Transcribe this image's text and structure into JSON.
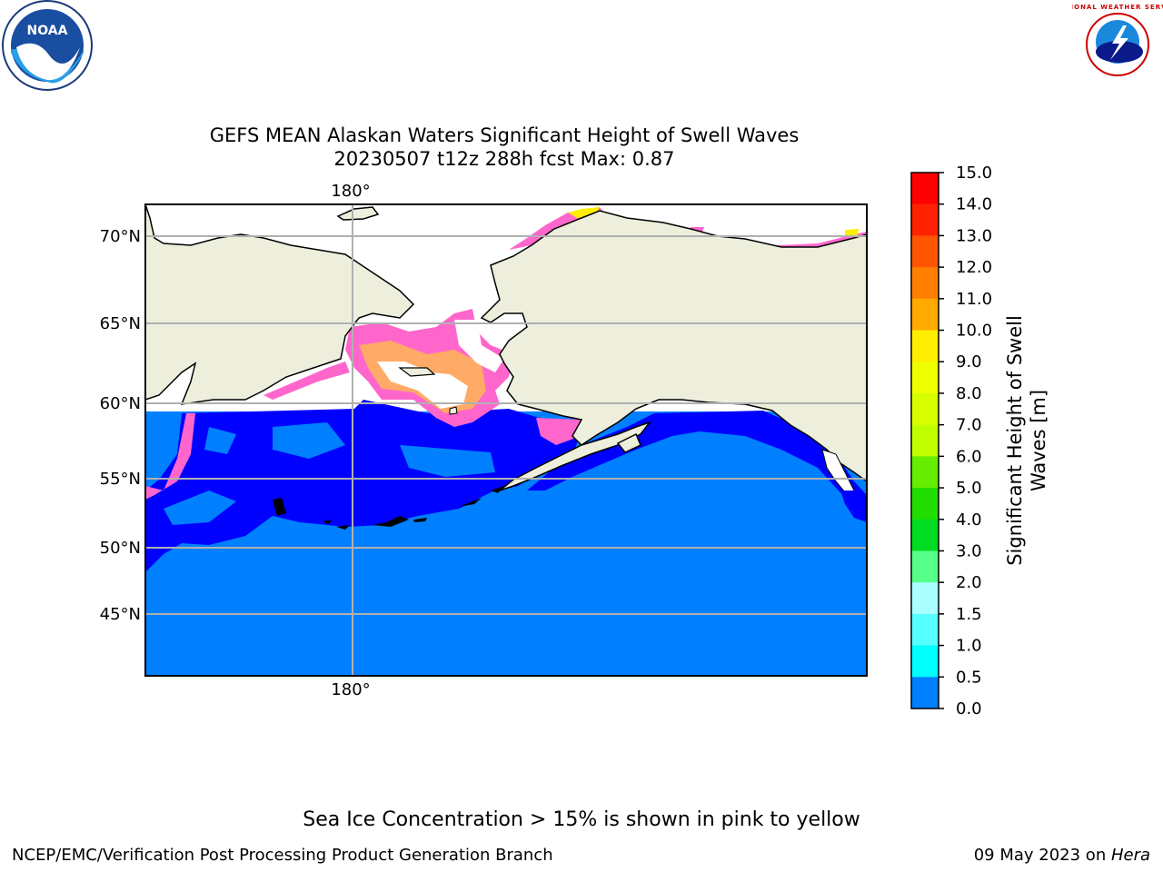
{
  "title": {
    "line1": "GEFS MEAN Alaskan Waters Significant Height of Swell Waves",
    "line2": "20230507 t12z 288h fcst   Max: 0.87"
  },
  "map": {
    "lon_labels": [
      "180°",
      "180°"
    ],
    "lat_labels": [
      "70°N",
      "65°N",
      "60°N",
      "55°N",
      "50°N",
      "45°N"
    ],
    "colors": {
      "ocean": "#0080ff",
      "land": "#eeeedd",
      "low_swell": "#0000ff",
      "ice_pink": "#ff66cc",
      "ice_orange": "#ffaa66",
      "ice_yellow": "#ffee00",
      "grid": "#b0b0b0"
    }
  },
  "colorbar": {
    "label_line1": "Significant Height of Swell",
    "label_line2": "Waves [m]",
    "ticks": [
      "15.0",
      "14.0",
      "13.0",
      "12.0",
      "11.0",
      "10.0",
      "9.0",
      "8.0",
      "7.0",
      "6.0",
      "5.0",
      "4.0",
      "3.0",
      "2.0",
      "1.5",
      "1.0",
      "0.5",
      "0.0"
    ],
    "colors": [
      "#ff0000",
      "#ff2200",
      "#ff5500",
      "#ff8000",
      "#ffaa00",
      "#ffee00",
      "#f0ff00",
      "#d8ff00",
      "#c0ff00",
      "#66ee00",
      "#22dd00",
      "#00dd22",
      "#55ff88",
      "#aaffff",
      "#55ffff",
      "#00ffff",
      "#0080ff",
      "#0000ff"
    ]
  },
  "logos": {
    "noaa_text": "NOAA",
    "nws_text": "NATIONAL WEATHER SERVICE"
  },
  "note": "Sea Ice Concentration > 15% is shown in pink to yellow",
  "footer": {
    "left": "NCEP/EMC/Verification Post Processing Product Generation Branch",
    "right_date": "09 May 2023 on ",
    "right_machine": "Hera"
  }
}
